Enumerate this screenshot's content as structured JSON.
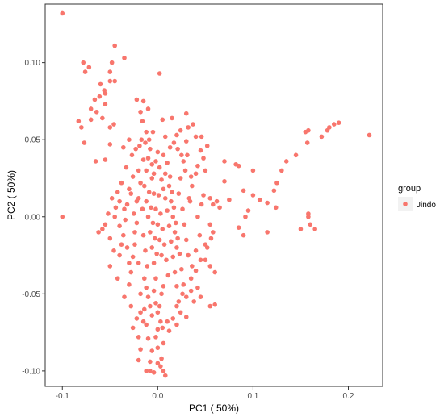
{
  "chart_data": {
    "type": "scatter",
    "title": "",
    "xlabel": "PC1 ( 50%)",
    "ylabel": "PC2 ( 50%)",
    "xlim": [
      -0.118,
      0.236
    ],
    "ylim": [
      -0.11,
      0.138
    ],
    "x_ticks": [
      -0.1,
      0.0,
      0.1,
      0.2
    ],
    "x_tick_labels": [
      "-0.1",
      "0.0",
      "0.1",
      "0.2"
    ],
    "y_ticks": [
      -0.1,
      -0.05,
      0.0,
      0.05,
      0.1
    ],
    "y_tick_labels": [
      "-0.10",
      "-0.05",
      "0.00",
      "0.05",
      "0.10"
    ],
    "grid": false,
    "legend": {
      "title": "group",
      "position": "right",
      "entries": [
        "Jindo"
      ]
    },
    "series": [
      {
        "name": "Jindo",
        "color": "#F8766D",
        "points": [
          [
            -0.1,
            0.132
          ],
          [
            -0.078,
            0.1
          ],
          [
            -0.072,
            0.097
          ],
          [
            -0.06,
            0.086
          ],
          [
            -0.076,
            0.094
          ],
          [
            -0.045,
            0.111
          ],
          [
            -0.048,
            0.1
          ],
          [
            -0.05,
            0.094
          ],
          [
            -0.035,
            0.103
          ],
          [
            -0.056,
            0.082
          ],
          [
            -0.061,
            0.078
          ],
          [
            -0.066,
            0.076
          ],
          [
            -0.07,
            0.07
          ],
          [
            -0.064,
            0.068
          ],
          [
            -0.055,
            0.073
          ],
          [
            -0.05,
            0.088
          ],
          [
            -0.055,
            0.08
          ],
          [
            -0.045,
            0.088
          ],
          [
            -0.083,
            0.062
          ],
          [
            -0.08,
            0.058
          ],
          [
            -0.07,
            0.063
          ],
          [
            -0.058,
            0.064
          ],
          [
            -0.077,
            0.048
          ],
          [
            -0.065,
            0.036
          ],
          [
            -0.055,
            0.037
          ],
          [
            -0.05,
            0.058
          ],
          [
            -0.05,
            0.047
          ],
          [
            -0.046,
            0.06
          ],
          [
            -0.022,
            0.076
          ],
          [
            -0.018,
            0.068
          ],
          [
            -0.015,
            0.075
          ],
          [
            -0.01,
            0.07
          ],
          [
            0.002,
            0.093
          ],
          [
            0.005,
            0.063
          ],
          [
            -0.012,
            0.055
          ],
          [
            0.015,
            0.064
          ],
          [
            0.03,
            0.067
          ],
          [
            0.02,
            0.053
          ],
          [
            0.025,
            0.04
          ],
          [
            0.04,
            0.052
          ],
          [
            0.045,
            0.043
          ],
          [
            0.04,
            0.028
          ],
          [
            0.046,
            0.052
          ],
          [
            0.035,
            0.026
          ],
          [
            0.032,
            0.058
          ],
          [
            0.037,
            0.06
          ],
          [
            0.042,
            0.033
          ],
          [
            0.03,
            0.049
          ],
          [
            0.07,
            0.036
          ],
          [
            0.082,
            0.034
          ],
          [
            0.085,
            0.033
          ],
          [
            0.1,
            0.03
          ],
          [
            0.13,
            0.03
          ],
          [
            0.135,
            0.036
          ],
          [
            0.145,
            0.04
          ],
          [
            0.125,
            0.022
          ],
          [
            0.122,
            0.017
          ],
          [
            0.124,
            0.006
          ],
          [
            0.115,
            0.009
          ],
          [
            0.107,
            0.011
          ],
          [
            0.1,
            0.014
          ],
          [
            0.09,
            0.017
          ],
          [
            0.095,
            0.004
          ],
          [
            0.092,
            0.0
          ],
          [
            0.075,
            0.011
          ],
          [
            0.065,
            0.006
          ],
          [
            0.062,
            0.01
          ],
          [
            0.07,
            0.023
          ],
          [
            0.085,
            -0.007
          ],
          [
            0.09,
            -0.012
          ],
          [
            0.115,
            -0.01
          ],
          [
            0.15,
            -0.008
          ],
          [
            0.16,
            -0.005
          ],
          [
            0.158,
            0.0
          ],
          [
            0.158,
            0.002
          ],
          [
            0.165,
            -0.008
          ],
          [
            0.155,
            0.055
          ],
          [
            0.158,
            0.056
          ],
          [
            0.157,
            0.048
          ],
          [
            0.172,
            0.052
          ],
          [
            0.178,
            0.056
          ],
          [
            0.18,
            0.058
          ],
          [
            0.185,
            0.06
          ],
          [
            0.19,
            0.061
          ],
          [
            0.222,
            0.053
          ],
          [
            0.048,
            0.014
          ],
          [
            0.055,
            0.012
          ],
          [
            0.058,
            0.008
          ],
          [
            0.055,
            -0.005
          ],
          [
            0.058,
            -0.01
          ],
          [
            0.056,
            -0.014
          ],
          [
            0.052,
            -0.02
          ],
          [
            0.05,
            -0.028
          ],
          [
            0.045,
            -0.028
          ],
          [
            0.055,
            -0.032
          ],
          [
            0.04,
            -0.035
          ],
          [
            0.035,
            -0.04
          ],
          [
            0.042,
            -0.046
          ],
          [
            0.035,
            -0.048
          ],
          [
            0.03,
            -0.052
          ],
          [
            0.038,
            -0.055
          ],
          [
            0.045,
            -0.052
          ],
          [
            0.055,
            -0.058
          ],
          [
            0.06,
            -0.057
          ],
          [
            0.03,
            -0.065
          ],
          [
            0.02,
            -0.07
          ],
          [
            0.01,
            -0.068
          ],
          [
            0.005,
            -0.072
          ],
          [
            -0.032,
            -0.02
          ],
          [
            -0.03,
            -0.03
          ],
          [
            -0.04,
            -0.025
          ],
          [
            -0.05,
            -0.014
          ],
          [
            -0.055,
            -0.005
          ],
          [
            -0.062,
            -0.01
          ],
          [
            -0.048,
            0.012
          ],
          [
            -0.04,
            0.01
          ],
          [
            -0.045,
            0.0
          ],
          [
            -0.035,
            0.005
          ],
          [
            -0.028,
            0.015
          ],
          [
            -0.022,
            0.01
          ],
          [
            -0.024,
            -0.01
          ],
          [
            -0.026,
            0.026
          ],
          [
            -0.02,
            0.03
          ],
          [
            -0.015,
            0.037
          ],
          [
            -0.02,
            -0.03
          ],
          [
            -0.018,
            -0.05
          ],
          [
            -0.014,
            -0.06
          ],
          [
            -0.012,
            -0.07
          ],
          [
            -0.01,
            -0.079
          ],
          [
            -0.006,
            -0.087
          ],
          [
            -0.008,
            -0.094
          ],
          [
            -0.012,
            -0.1
          ],
          [
            -0.008,
            -0.1
          ],
          [
            -0.004,
            -0.101
          ],
          [
            0.003,
            -0.097
          ],
          [
            0.004,
            -0.092
          ],
          [
            0.0,
            -0.095
          ],
          [
            0.008,
            -0.103
          ],
          [
            0.006,
            -0.1
          ],
          [
            -0.02,
            -0.093
          ],
          [
            -0.018,
            -0.086
          ],
          [
            -0.02,
            -0.078
          ],
          [
            -0.015,
            -0.068
          ],
          [
            -0.018,
            -0.062
          ],
          [
            0.0,
            -0.085
          ],
          [
            -0.002,
            -0.078
          ],
          [
            0.0,
            -0.073
          ],
          [
            0.003,
            -0.068
          ],
          [
            0.006,
            -0.082
          ],
          [
            0.002,
            -0.058
          ],
          [
            0.004,
            -0.05
          ],
          [
            0.006,
            -0.045
          ],
          [
            -0.002,
            -0.04
          ],
          [
            -0.004,
            -0.03
          ],
          [
            -0.006,
            -0.02
          ],
          [
            -0.008,
            -0.01
          ],
          [
            -0.01,
            0.0
          ],
          [
            -0.012,
            0.01
          ],
          [
            -0.014,
            0.02
          ],
          [
            -0.006,
            0.025
          ],
          [
            -0.004,
            0.015
          ],
          [
            -0.002,
            0.005
          ],
          [
            0.0,
            -0.005
          ],
          [
            0.002,
            -0.015
          ],
          [
            0.004,
            -0.025
          ],
          [
            0.006,
            0.018
          ],
          [
            0.008,
            0.028
          ],
          [
            0.01,
            0.035
          ],
          [
            0.012,
            0.02
          ],
          [
            0.014,
            0.01
          ],
          [
            0.016,
            0.0
          ],
          [
            0.018,
            -0.01
          ],
          [
            0.02,
            -0.02
          ],
          [
            0.022,
            0.015
          ],
          [
            0.024,
            0.025
          ],
          [
            0.026,
            0.005
          ],
          [
            0.028,
            -0.005
          ],
          [
            0.03,
            -0.015
          ],
          [
            0.032,
            -0.025
          ],
          [
            0.034,
            0.01
          ],
          [
            0.036,
            0.02
          ],
          [
            -0.016,
            0.005
          ],
          [
            -0.018,
            0.022
          ],
          [
            -0.02,
            0.012
          ],
          [
            -0.022,
            -0.004
          ],
          [
            -0.024,
            -0.018
          ],
          [
            -0.026,
            -0.026
          ],
          [
            -0.028,
            -0.036
          ],
          [
            -0.012,
            0.03
          ],
          [
            -0.01,
            0.038
          ],
          [
            -0.008,
            0.044
          ],
          [
            -0.006,
            0.034
          ],
          [
            -0.004,
            0.028
          ],
          [
            -0.002,
            0.036
          ],
          [
            0.0,
            0.042
          ],
          [
            0.002,
            0.032
          ],
          [
            0.004,
            0.024
          ],
          [
            0.006,
            0.04
          ],
          [
            0.008,
            0.012
          ],
          [
            0.01,
            0.004
          ],
          [
            0.012,
            -0.006
          ],
          [
            0.014,
            -0.016
          ],
          [
            0.016,
            -0.026
          ],
          [
            0.018,
            -0.036
          ],
          [
            0.02,
            -0.045
          ],
          [
            0.022,
            -0.055
          ],
          [
            0.024,
            -0.062
          ],
          [
            -0.014,
            -0.04
          ],
          [
            -0.012,
            -0.046
          ],
          [
            -0.01,
            -0.052
          ],
          [
            -0.008,
            -0.058
          ],
          [
            -0.006,
            -0.064
          ],
          [
            -0.004,
            -0.048
          ],
          [
            -0.002,
            -0.056
          ],
          [
            0.0,
            -0.062
          ],
          [
            -0.03,
            0.018
          ],
          [
            -0.032,
            0.008
          ],
          [
            -0.034,
            -0.002
          ],
          [
            -0.036,
            -0.012
          ],
          [
            -0.025,
            0.002
          ],
          [
            -0.015,
            -0.012
          ],
          [
            -0.013,
            -0.022
          ],
          [
            -0.011,
            -0.032
          ],
          [
            -0.009,
            0.016
          ],
          [
            -0.007,
            0.006
          ],
          [
            -0.005,
            -0.004
          ],
          [
            -0.003,
            -0.014
          ],
          [
            -0.001,
            -0.024
          ],
          [
            0.001,
            0.014
          ],
          [
            0.003,
            0.002
          ],
          [
            0.005,
            -0.008
          ],
          [
            0.007,
            -0.018
          ],
          [
            0.009,
            -0.028
          ],
          [
            0.011,
            -0.038
          ],
          [
            0.013,
            0.026
          ],
          [
            0.015,
            0.016
          ],
          [
            0.017,
            0.006
          ],
          [
            0.019,
            -0.004
          ],
          [
            0.021,
            -0.014
          ],
          [
            0.023,
            -0.024
          ],
          [
            0.025,
            -0.034
          ],
          [
            0.027,
            -0.044
          ],
          [
            0.029,
            0.03
          ],
          [
            0.031,
            0.04
          ],
          [
            0.033,
            0.012
          ],
          [
            -0.027,
            0.04
          ],
          [
            -0.023,
            0.044
          ],
          [
            -0.019,
            0.046
          ],
          [
            -0.017,
            0.05
          ],
          [
            -0.013,
            0.048
          ],
          [
            -0.009,
            0.05
          ],
          [
            0.013,
            0.045
          ],
          [
            0.017,
            0.048
          ],
          [
            0.021,
            0.044
          ],
          [
            0.027,
            0.036
          ],
          [
            0.048,
            0.038
          ],
          [
            0.052,
            0.046
          ],
          [
            0.05,
            0.03
          ],
          [
            -0.03,
            0.05
          ],
          [
            -0.036,
            0.045
          ],
          [
            -0.033,
            0.032
          ],
          [
            -0.038,
            0.022
          ],
          [
            -0.042,
            0.016
          ],
          [
            -0.044,
            0.006
          ],
          [
            -0.04,
            -0.006
          ],
          [
            -0.038,
            -0.018
          ],
          [
            -0.046,
            -0.022
          ],
          [
            -0.05,
            -0.032
          ],
          [
            -0.042,
            -0.04
          ],
          [
            -0.035,
            -0.052
          ],
          [
            -0.028,
            -0.058
          ],
          [
            -0.022,
            -0.066
          ],
          [
            -0.026,
            -0.072
          ],
          [
            0.012,
            -0.074
          ],
          [
            0.016,
            -0.066
          ],
          [
            0.02,
            -0.058
          ],
          [
            0.026,
            -0.05
          ],
          [
            0.036,
            -0.032
          ],
          [
            0.04,
            -0.022
          ],
          [
            0.044,
            -0.012
          ],
          [
            0.042,
            0.0
          ],
          [
            0.046,
            0.008
          ],
          [
            0.05,
            -0.018
          ],
          [
            0.06,
            -0.036
          ],
          [
            -0.058,
            -0.008
          ],
          [
            -0.052,
            0.002
          ],
          [
            -0.03,
            -0.044
          ],
          [
            -0.016,
            0.062
          ],
          [
            -0.005,
            0.055
          ],
          [
            0.008,
            0.052
          ],
          [
            0.024,
            0.056
          ],
          [
            -0.1,
            0.0
          ]
        ]
      }
    ]
  }
}
